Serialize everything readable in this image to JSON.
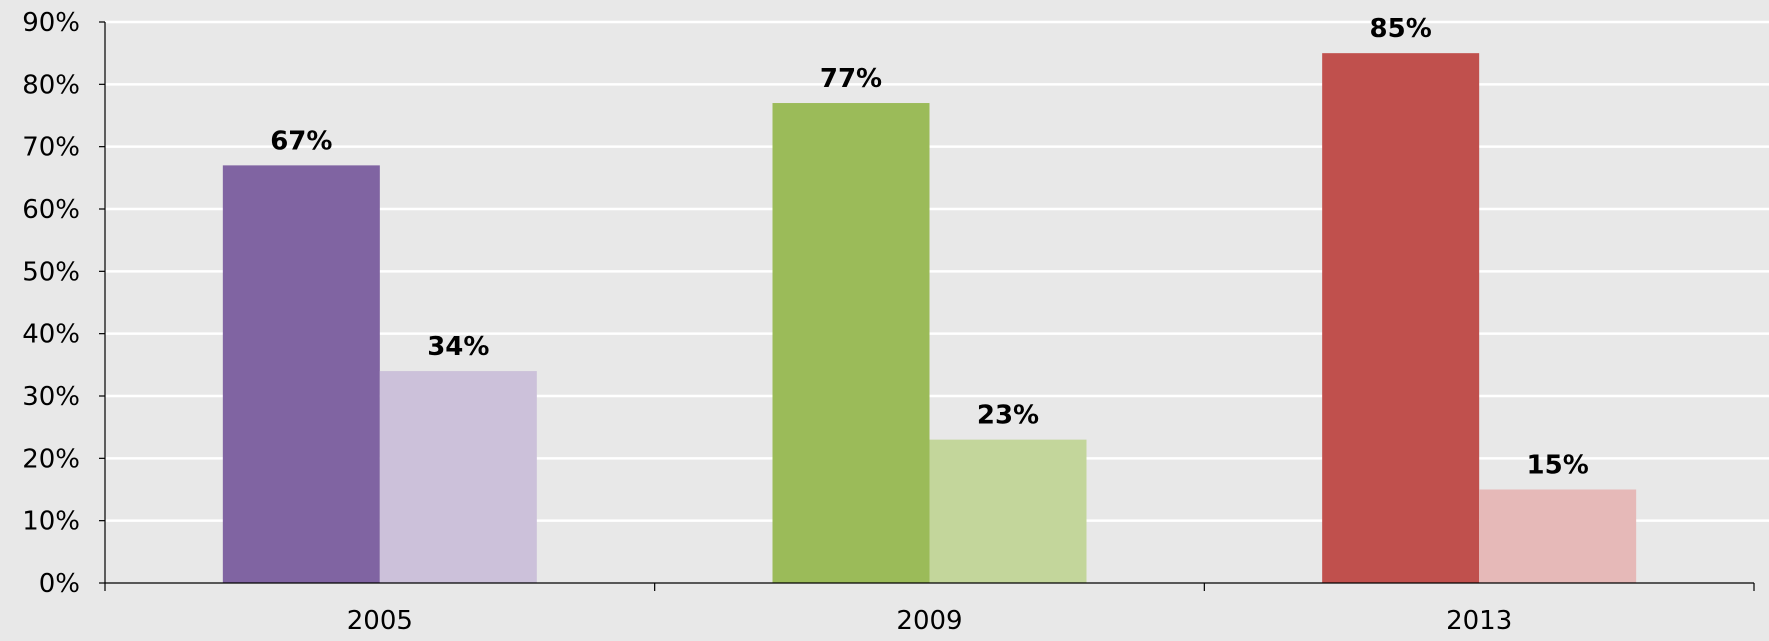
{
  "chart_data": {
    "type": "bar",
    "categories": [
      "2005",
      "2009",
      "2013"
    ],
    "bars": [
      {
        "category": "2005",
        "values": [
          67,
          34
        ],
        "label_text": [
          "67%",
          "34%"
        ],
        "colors": [
          "#8064a2",
          "#ccc1da"
        ]
      },
      {
        "category": "2009",
        "values": [
          77,
          23
        ],
        "label_text": [
          "77%",
          "23%"
        ],
        "colors": [
          "#9bbb59",
          "#c3d69b"
        ]
      },
      {
        "category": "2013",
        "values": [
          85,
          15
        ],
        "label_text": [
          "85%",
          "15%"
        ],
        "colors": [
          "#c0504d",
          "#e6b9b8"
        ]
      }
    ],
    "ylim": [
      0,
      90
    ],
    "yticks": [
      0,
      10,
      20,
      30,
      40,
      50,
      60,
      70,
      80,
      90
    ],
    "ytick_labels": [
      "0%",
      "10%",
      "20%",
      "30%",
      "40%",
      "50%",
      "60%",
      "70%",
      "80%",
      "90%"
    ],
    "grid": true,
    "background": "#e8e8e8",
    "title": "",
    "xlabel": "",
    "ylabel": ""
  }
}
